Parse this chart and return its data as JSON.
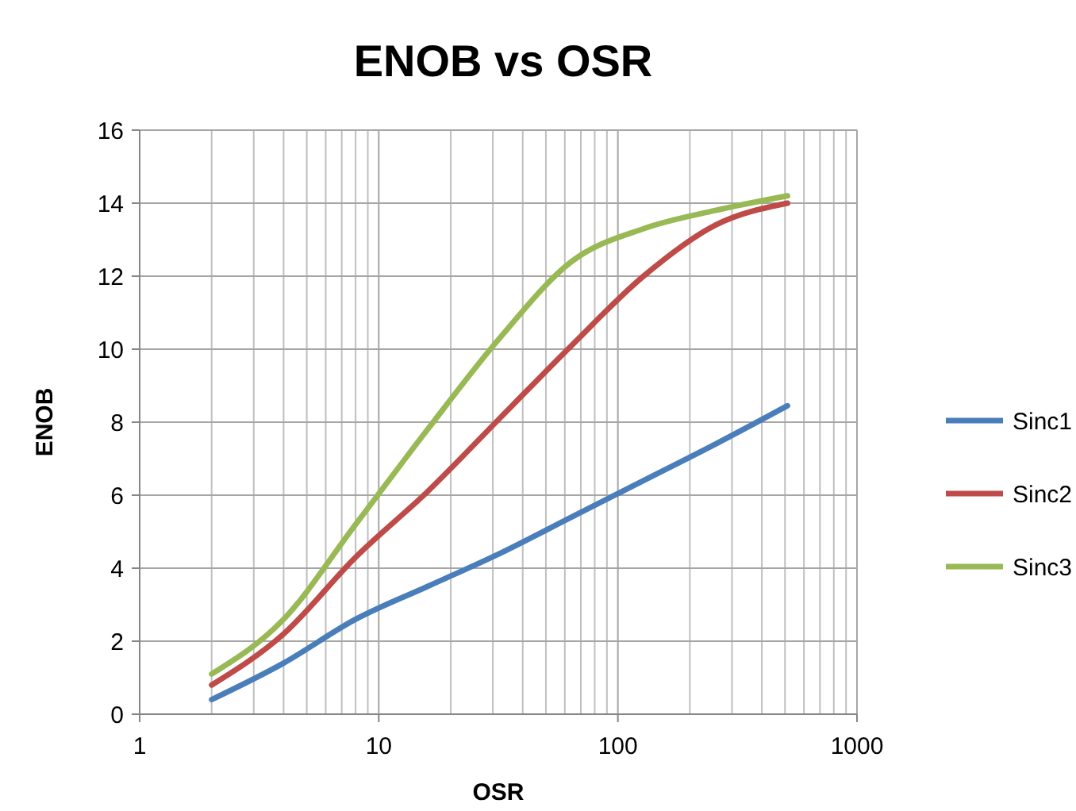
{
  "chart_data": {
    "type": "line",
    "title": "ENOB vs OSR",
    "xlabel": "OSR",
    "ylabel": "ENOB",
    "log": "x",
    "grid": true,
    "legend": "right",
    "marker": "none",
    "line_style": "solid",
    "x": [
      2,
      4,
      8,
      16,
      32,
      64,
      128,
      256,
      512
    ],
    "xlim": [
      1,
      1000
    ],
    "xticks": [
      1,
      10,
      100,
      1000
    ],
    "ylim": [
      0,
      16
    ],
    "yticks": [
      0,
      2,
      4,
      6,
      8,
      10,
      12,
      14,
      16
    ],
    "series": [
      {
        "name": "Sinc1",
        "color": "#4a7ebb",
        "values": [
          0.4,
          1.4,
          2.6,
          3.5,
          4.4,
          5.4,
          6.4,
          7.4,
          8.45
        ]
      },
      {
        "name": "Sinc2",
        "color": "#be4b48",
        "values": [
          0.8,
          2.2,
          4.3,
          6.1,
          8.1,
          10.1,
          12.0,
          13.4,
          14.0
        ]
      },
      {
        "name": "Sinc3",
        "color": "#98b954",
        "values": [
          1.1,
          2.6,
          5.2,
          7.8,
          10.3,
          12.4,
          13.3,
          13.8,
          14.2
        ]
      }
    ]
  }
}
